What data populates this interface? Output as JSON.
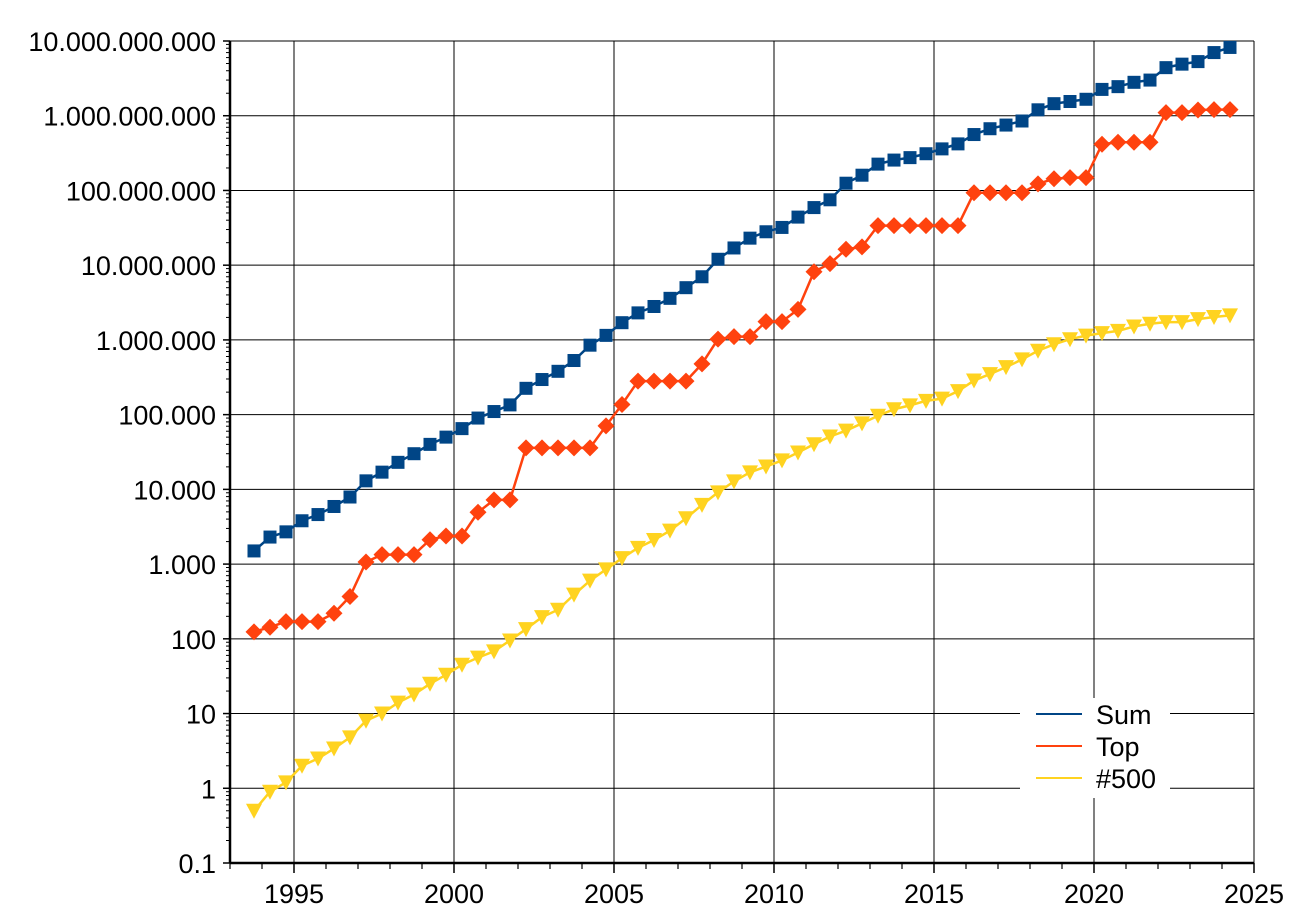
{
  "chart_data": {
    "type": "line",
    "title": "",
    "xlabel": "",
    "ylabel": "",
    "y_scale": "log",
    "xlim": [
      1993,
      2025
    ],
    "ylim": [
      0.1,
      10000000000
    ],
    "x_ticks": [
      1995,
      2000,
      2005,
      2010,
      2015,
      2020,
      2025
    ],
    "x_tick_labels": [
      "1995",
      "2000",
      "2005",
      "2010",
      "2015",
      "2020",
      "2025"
    ],
    "y_ticks": [
      0.1,
      1,
      10,
      100,
      1000,
      10000,
      100000,
      1000000,
      10000000,
      100000000,
      1000000000,
      10000000000
    ],
    "y_tick_labels": [
      "0.1",
      "1",
      "10",
      "100",
      "1.000",
      "10.000",
      "100.000",
      "1.000.000",
      "10.000.000",
      "100.000.000",
      "1.000.000.000",
      "10.000.000.000"
    ],
    "grid": true,
    "legend_position": "bottom-right",
    "series": [
      {
        "name": "Sum",
        "color": "#004586",
        "marker": "square",
        "x": [
          1993.75,
          1994.25,
          1994.75,
          1995.25,
          1995.75,
          1996.25,
          1996.75,
          1997.25,
          1997.75,
          1998.25,
          1998.75,
          1999.25,
          1999.75,
          2000.25,
          2000.75,
          2001.25,
          2001.75,
          2002.25,
          2002.75,
          2003.25,
          2003.75,
          2004.25,
          2004.75,
          2005.25,
          2005.75,
          2006.25,
          2006.75,
          2007.25,
          2007.75,
          2008.25,
          2008.75,
          2009.25,
          2009.75,
          2010.25,
          2010.75,
          2011.25,
          2011.75,
          2012.25,
          2012.75,
          2013.25,
          2013.75,
          2014.25,
          2014.75,
          2015.25,
          2015.75,
          2016.25,
          2016.75,
          2017.25,
          2017.75,
          2018.25,
          2018.75,
          2019.25,
          2019.75,
          2020.25,
          2020.75,
          2021.25,
          2021.75,
          2022.25,
          2022.75,
          2023.25,
          2023.75,
          2024.25
        ],
        "values": [
          1500,
          2300,
          2700,
          3800,
          4600,
          5900,
          7900,
          13000,
          17000,
          23000,
          30000,
          40000,
          50000,
          65000,
          90000,
          110000,
          135000,
          225000,
          295000,
          380000,
          530000,
          850000,
          1150000,
          1700000,
          2300000,
          2800000,
          3600000,
          5000000,
          7000000,
          12000000,
          17000000,
          23000000,
          28000000,
          32000000,
          44000000,
          59000000,
          75000000,
          125000000,
          160000000,
          225000000,
          255000000,
          275000000,
          310000000,
          360000000,
          420000000,
          560000000,
          670000000,
          750000000,
          850000000,
          1200000000,
          1450000000,
          1550000000,
          1660000000,
          2250000000,
          2450000000,
          2800000000,
          3000000000,
          4400000000,
          4900000000,
          5300000000,
          7000000000,
          8200000000
        ]
      },
      {
        "name": "Top",
        "color": "#ff420e",
        "marker": "diamond",
        "x": [
          1993.75,
          1994.25,
          1994.75,
          1995.25,
          1995.75,
          1996.25,
          1996.75,
          1997.25,
          1997.75,
          1998.25,
          1998.75,
          1999.25,
          1999.75,
          2000.25,
          2000.75,
          2001.25,
          2001.75,
          2002.25,
          2002.75,
          2003.25,
          2003.75,
          2004.25,
          2004.75,
          2005.25,
          2005.75,
          2006.25,
          2006.75,
          2007.25,
          2007.75,
          2008.25,
          2008.75,
          2009.25,
          2009.75,
          2010.25,
          2010.75,
          2011.25,
          2011.75,
          2012.25,
          2012.75,
          2013.25,
          2013.75,
          2014.25,
          2014.75,
          2015.25,
          2015.75,
          2016.25,
          2016.75,
          2017.25,
          2017.75,
          2018.25,
          2018.75,
          2019.25,
          2019.75,
          2020.25,
          2020.75,
          2021.25,
          2021.75,
          2022.25,
          2022.75,
          2023.25,
          2023.75,
          2024.25
        ],
        "values": [
          124,
          143,
          170,
          170,
          170,
          220,
          368,
          1068,
          1338,
          1338,
          1338,
          2121,
          2379,
          2379,
          4938,
          7226,
          7226,
          35860,
          35860,
          35860,
          35860,
          35860,
          70720,
          136800,
          280600,
          280600,
          280600,
          280600,
          478200,
          1026000,
          1105000,
          1105000,
          1759000,
          1759000,
          2566000,
          8162000,
          10510000,
          16320000,
          17590000,
          33860000,
          33860000,
          33860000,
          33860000,
          33860000,
          33860000,
          93010000,
          93010000,
          93010000,
          93010000,
          122300000,
          143500000,
          148600000,
          148600000,
          415500000,
          442000000,
          442000000,
          442000000,
          1102000000,
          1102000000,
          1194000000,
          1206000000,
          1206000000
        ]
      },
      {
        "name": "#500",
        "color": "#ffd320",
        "marker": "triangle-down",
        "x": [
          1993.75,
          1994.25,
          1994.75,
          1995.25,
          1995.75,
          1996.25,
          1996.75,
          1997.25,
          1997.75,
          1998.25,
          1998.75,
          1999.25,
          1999.75,
          2000.25,
          2000.75,
          2001.25,
          2001.75,
          2002.25,
          2002.75,
          2003.25,
          2003.75,
          2004.25,
          2004.75,
          2005.25,
          2005.75,
          2006.25,
          2006.75,
          2007.25,
          2007.75,
          2008.25,
          2008.75,
          2009.25,
          2009.75,
          2010.25,
          2010.75,
          2011.25,
          2011.75,
          2012.25,
          2012.75,
          2013.25,
          2013.75,
          2014.25,
          2014.75,
          2015.25,
          2015.75,
          2016.25,
          2016.75,
          2017.25,
          2017.75,
          2018.25,
          2018.75,
          2019.25,
          2019.75,
          2020.25,
          2020.75,
          2021.25,
          2021.75,
          2022.25,
          2022.75,
          2023.25,
          2023.75,
          2024.25
        ],
        "values": [
          0.5,
          0.9,
          1.2,
          2,
          2.5,
          3.4,
          4.8,
          8,
          10,
          14,
          18,
          25,
          33,
          45,
          56,
          68,
          95,
          135,
          195,
          245,
          390,
          600,
          850,
          1200,
          1650,
          2100,
          2800,
          4100,
          6200,
          9100,
          12800,
          16900,
          20200,
          24400,
          31100,
          40200,
          51000,
          61000,
          76500,
          96600,
          118000,
          133000,
          153000,
          164000,
          206000,
          286000,
          349000,
          432000,
          548000,
          716000,
          874000,
          1022000,
          1142000,
          1231000,
          1320000,
          1511000,
          1646000,
          1731000,
          1731000,
          1899000,
          2025000,
          2131000
        ]
      }
    ]
  }
}
